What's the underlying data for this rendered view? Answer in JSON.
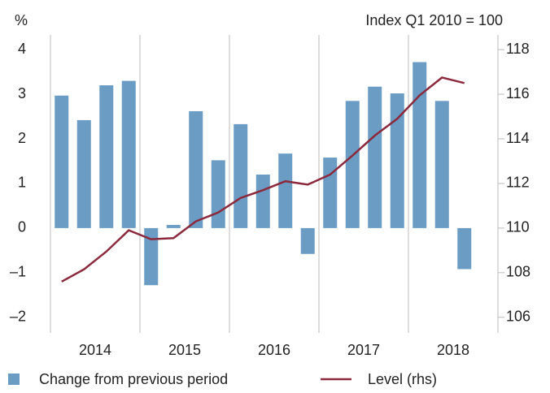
{
  "chart_data": {
    "type": "bar_line",
    "ylabel": "%",
    "y2label": "Index Q1 2010 = 100",
    "categories": [
      null,
      null,
      null,
      null,
      null,
      null,
      null,
      null,
      null,
      null,
      null,
      null,
      null,
      null,
      null,
      null,
      null,
      null,
      null,
      null
    ],
    "year_labels": [
      "2014",
      "2015",
      "2016",
      "2017",
      "2018"
    ],
    "series": [
      {
        "name": "Change from previous period",
        "color": "#6a9cc4",
        "type": "bar",
        "values": [
          2.97,
          2.42,
          3.2,
          3.3,
          -1.28,
          0.07,
          2.62,
          1.52,
          2.33,
          1.2,
          1.67,
          -0.58,
          1.58,
          2.85,
          3.17,
          3.02,
          3.72,
          2.85,
          -0.92,
          null
        ]
      },
      {
        "name": "Level (rhs)",
        "color": "#8b2a3c",
        "type": "line",
        "axis": "y2",
        "values": [
          107.6,
          108.15,
          108.95,
          109.9,
          109.5,
          109.55,
          110.3,
          110.7,
          111.35,
          111.7,
          112.1,
          111.95,
          112.4,
          113.25,
          114.15,
          114.9,
          115.95,
          116.75,
          116.5,
          null
        ]
      }
    ],
    "ylim": [
      -2.35,
      4.33
    ],
    "yticks": [
      4,
      3,
      2,
      1,
      0,
      {
        "value": -1,
        "label": "–1"
      },
      {
        "value": -2,
        "label": "–2"
      }
    ],
    "y2lim": [
      105.3,
      118.66
    ],
    "y2ticks": [
      118,
      116,
      114,
      112,
      110,
      108,
      106
    ]
  }
}
